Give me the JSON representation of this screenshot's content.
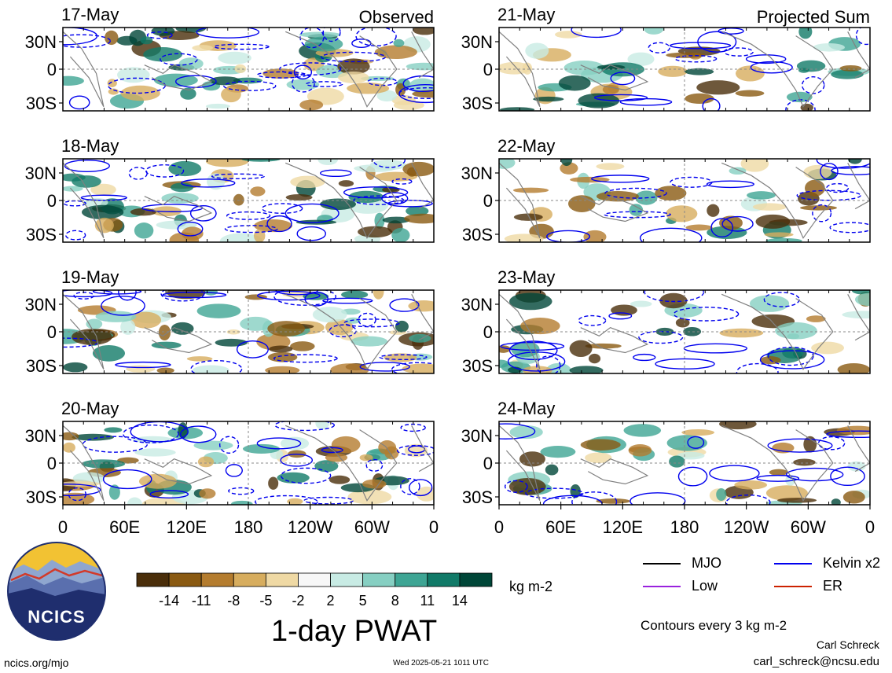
{
  "chart_data": {
    "type": "heatmap",
    "variable": "1-day PWAT",
    "units": "kg m-2",
    "x_ticks": [
      "0",
      "60E",
      "120E",
      "180",
      "120W",
      "60W",
      "0"
    ],
    "y_ticks": [
      "30N",
      "0",
      "30S"
    ],
    "columns": [
      {
        "label": "Observed",
        "panels": [
          "17-May",
          "18-May",
          "19-May",
          "20-May"
        ]
      },
      {
        "label": "Projected Sum",
        "panels": [
          "21-May",
          "22-May",
          "23-May",
          "24-May"
        ]
      }
    ],
    "colorbar": {
      "tick_labels": [
        "-14",
        "-11",
        "-8",
        "-5",
        "-2",
        "2",
        "5",
        "8",
        "11",
        "14"
      ],
      "colors": [
        "#4a2e0a",
        "#8a5a12",
        "#b47c2e",
        "#d7ad5e",
        "#efd9a4",
        "#f7f7f7",
        "#c8ebe4",
        "#86cfc2",
        "#3ea594",
        "#117a68",
        "#004638"
      ]
    },
    "contour_legend": [
      {
        "name": "MJO",
        "color": "#000000"
      },
      {
        "name": "Kelvin x2",
        "color": "#0000ee"
      },
      {
        "name": "Low",
        "color": "#9922dd"
      },
      {
        "name": "ER",
        "color": "#cc2200"
      }
    ],
    "contour_note": "Contours every 3 kg m-2"
  },
  "footer": {
    "title": "1-day PWAT",
    "author": "Carl Schreck",
    "email": "carl_schreck@ncsu.edu",
    "site": "ncics.org/mjo",
    "timestamp": "Wed 2025-05-21 1011 UTC",
    "logo_text": "NCICS"
  }
}
